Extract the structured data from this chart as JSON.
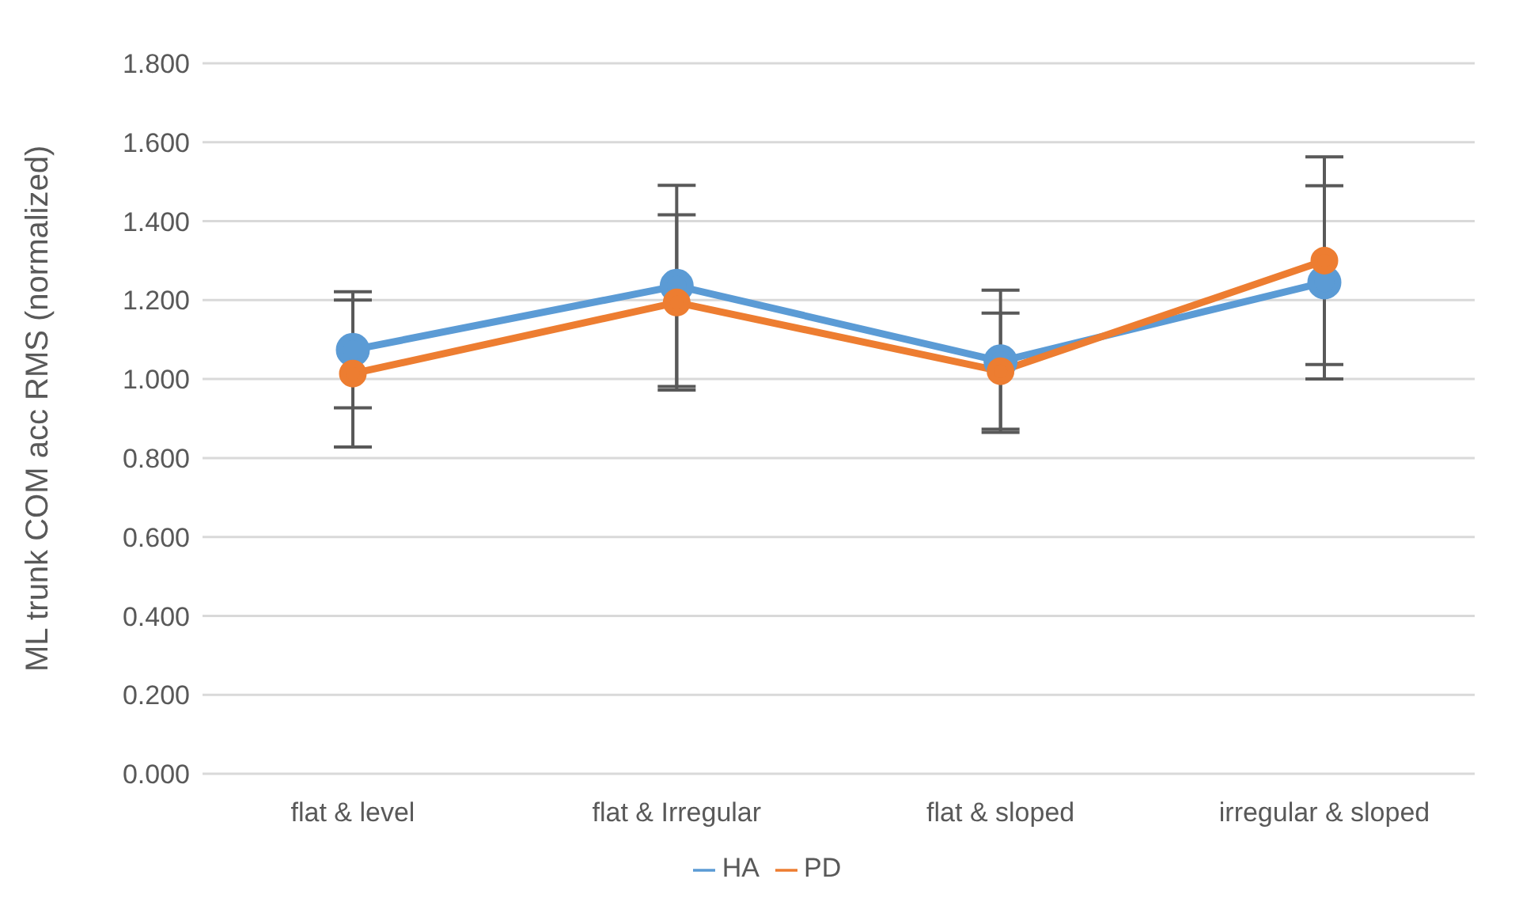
{
  "chart_data": {
    "type": "line",
    "ylabel": "ML trunk COM acc RMS (normalized)",
    "categories": [
      "flat & level",
      "flat & Irregular",
      "flat & sloped",
      "irregular & sloped"
    ],
    "series": [
      {
        "name": "HA",
        "color": "#5b9bd5",
        "values": [
          1.074,
          1.236,
          1.045,
          1.245
        ],
        "errors": [
          0.147,
          0.255,
          0.18,
          0.245
        ]
      },
      {
        "name": "PD",
        "color": "#ed7d31",
        "values": [
          1.014,
          1.194,
          1.02,
          1.3
        ],
        "errors": [
          0.186,
          0.222,
          0.147,
          0.263
        ]
      }
    ],
    "ylim": [
      0,
      1.8
    ],
    "yticks": [
      {
        "value": 0,
        "label": "0.000"
      },
      {
        "value": 0.2,
        "label": "0.200"
      },
      {
        "value": 0.4,
        "label": "0.400"
      },
      {
        "value": 0.6,
        "label": "0.600"
      },
      {
        "value": 0.8,
        "label": "0.800"
      },
      {
        "value": 1,
        "label": "1.000"
      },
      {
        "value": 1.2,
        "label": "1.200"
      },
      {
        "value": 1.4,
        "label": "1.400"
      },
      {
        "value": 1.6,
        "label": "1.600"
      },
      {
        "value": 1.8,
        "label": "1.800"
      }
    ],
    "grid": "y",
    "legend": "bottom",
    "marker": "circle",
    "line_style": "solid"
  }
}
